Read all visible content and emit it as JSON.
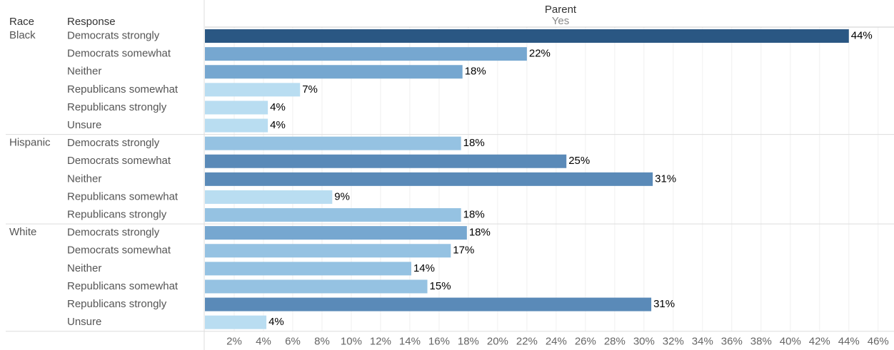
{
  "chart_data": {
    "type": "bar",
    "row_header": "Race",
    "response_header": "Response",
    "column_header": "Parent",
    "column_value": "Yes",
    "groups": [
      {
        "name": "Black",
        "categories": [
          "Democrats strongly",
          "Democrats somewhat",
          "Neither",
          "Republicans somewhat",
          "Republicans strongly",
          "Unsure"
        ],
        "values": [
          44.0,
          22.0,
          17.6,
          6.5,
          4.3,
          4.3
        ],
        "value_labels": [
          "44%",
          "22%",
          "18%",
          "7%",
          "4%",
          "4%"
        ],
        "colors": [
          "#2a5783",
          "#76a7d0",
          "#76a7d0",
          "#b9ddf1",
          "#b9ddf1",
          "#b9ddf1"
        ]
      },
      {
        "name": "Hispanic",
        "categories": [
          "Democrats strongly",
          "Democrats somewhat",
          "Neither",
          "Republicans somewhat",
          "Republicans strongly"
        ],
        "values": [
          17.5,
          24.7,
          30.6,
          8.7,
          17.5
        ],
        "value_labels": [
          "18%",
          "25%",
          "31%",
          "9%",
          "18%"
        ],
        "colors": [
          "#95c2e2",
          "#5a8ab8",
          "#5a8ab8",
          "#b9ddf1",
          "#95c2e2"
        ]
      },
      {
        "name": "White",
        "categories": [
          "Democrats strongly",
          "Democrats somewhat",
          "Neither",
          "Republicans somewhat",
          "Republicans strongly",
          "Unsure"
        ],
        "values": [
          17.9,
          16.8,
          14.1,
          15.2,
          30.5,
          4.2
        ],
        "value_labels": [
          "18%",
          "17%",
          "14%",
          "15%",
          "31%",
          "4%"
        ],
        "colors": [
          "#76a7d0",
          "#95c2e2",
          "#95c2e2",
          "#95c2e2",
          "#5a8ab8",
          "#b9ddf1"
        ]
      }
    ],
    "xlim": [
      0,
      46.5
    ],
    "xticks": [
      {
        "value": 2,
        "label": "2%"
      },
      {
        "value": 4,
        "label": "4%"
      },
      {
        "value": 6,
        "label": "6%"
      },
      {
        "value": 8,
        "label": "8%"
      },
      {
        "value": 10,
        "label": "10%"
      },
      {
        "value": 12,
        "label": "12%"
      },
      {
        "value": 14,
        "label": "14%"
      },
      {
        "value": 16,
        "label": "16%"
      },
      {
        "value": 18,
        "label": "18%"
      },
      {
        "value": 20,
        "label": "20%"
      },
      {
        "value": 22,
        "label": "22%"
      },
      {
        "value": 24,
        "label": "24%"
      },
      {
        "value": 26,
        "label": "26%"
      },
      {
        "value": 28,
        "label": "28%"
      },
      {
        "value": 30,
        "label": "30%"
      },
      {
        "value": 32,
        "label": "32%"
      },
      {
        "value": 34,
        "label": "34%"
      },
      {
        "value": 36,
        "label": "36%"
      },
      {
        "value": 38,
        "label": "38%"
      },
      {
        "value": 40,
        "label": "40%"
      },
      {
        "value": 42,
        "label": "42%"
      },
      {
        "value": 44,
        "label": "44%"
      },
      {
        "value": 46,
        "label": "46%"
      }
    ],
    "grid": true
  }
}
